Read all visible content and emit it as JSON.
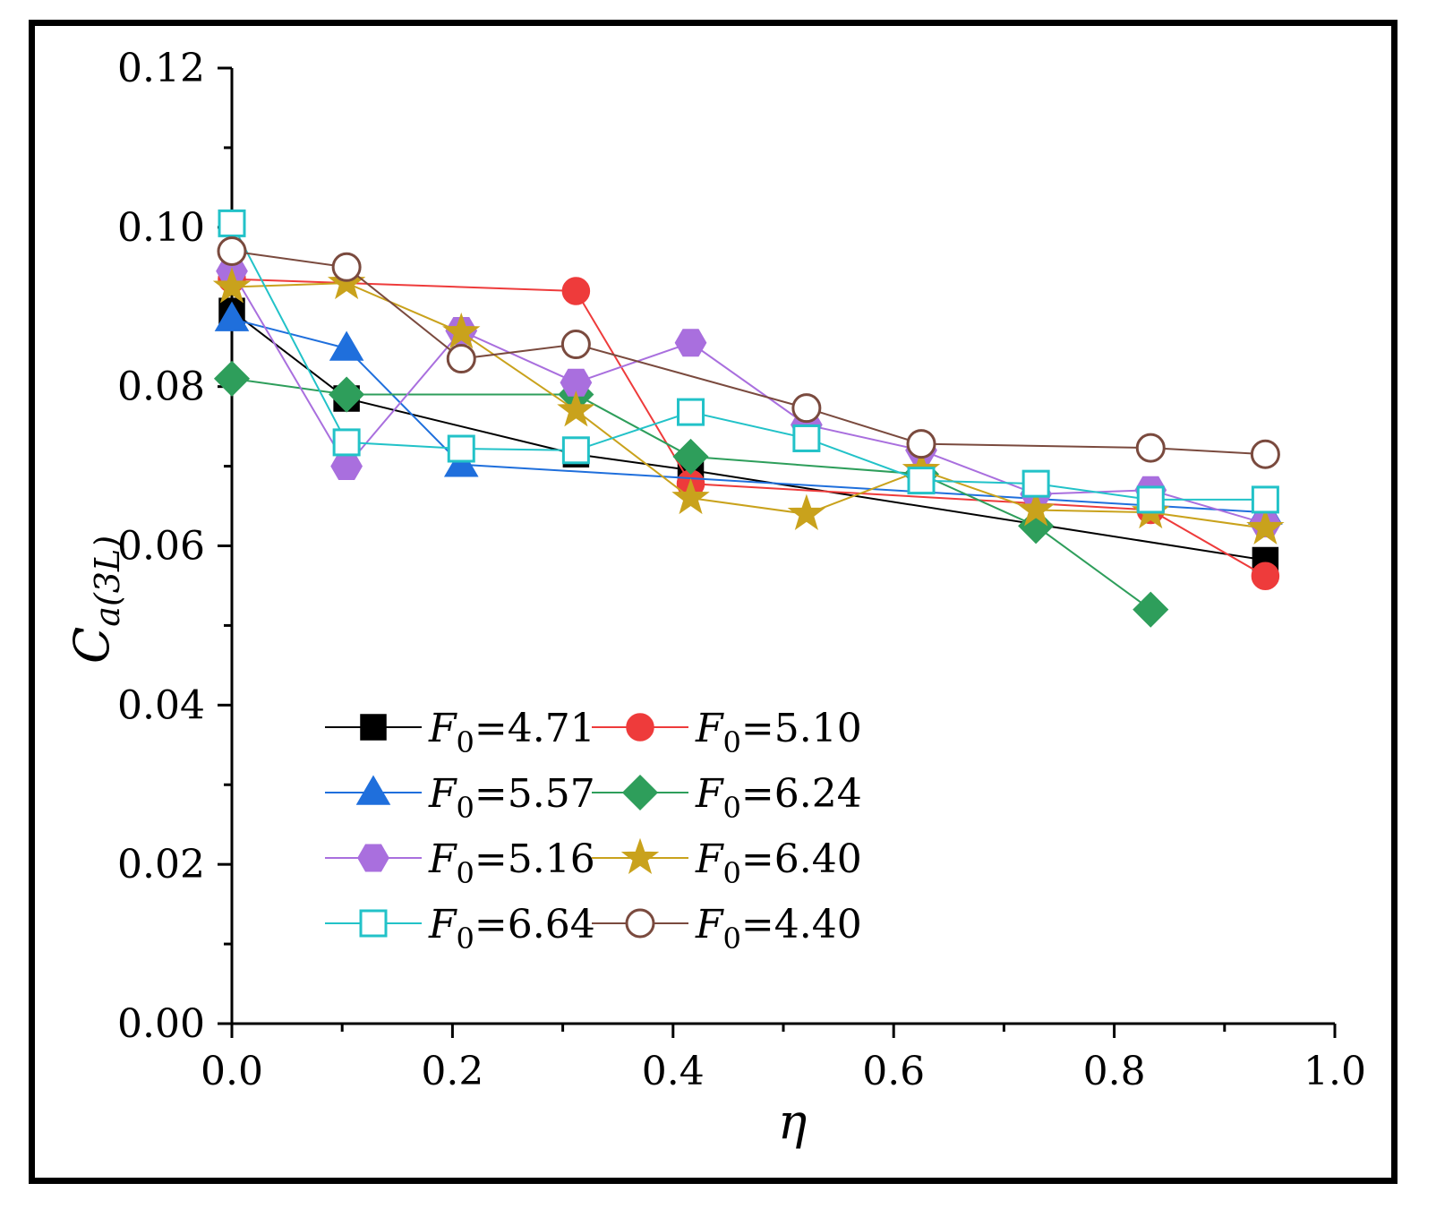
{
  "chart_data": {
    "type": "line",
    "title": "",
    "xlabel": "η",
    "ylabel_main": "C",
    "ylabel_sub": "a(3L)",
    "xlim": [
      0.0,
      1.0
    ],
    "ylim": [
      0.0,
      0.12
    ],
    "x_ticks": [
      "0.0",
      "0.2",
      "0.4",
      "0.6",
      "0.8",
      "1.0"
    ],
    "y_ticks": [
      "0.00",
      "0.02",
      "0.04",
      "0.06",
      "0.08",
      "0.10",
      "0.12"
    ],
    "x_tick_values": [
      0.0,
      0.2,
      0.4,
      0.6,
      0.8,
      1.0
    ],
    "y_tick_values": [
      0.0,
      0.02,
      0.04,
      0.06,
      0.08,
      0.1,
      0.12
    ],
    "grid": false,
    "legend_position": "lower-left",
    "series": [
      {
        "name_var": "F",
        "name_sub": "0",
        "name_val": "=4.71",
        "color": "#000000",
        "marker": "square",
        "filled": true,
        "x": [
          0.0,
          0.104,
          0.312,
          0.416,
          0.937
        ],
        "y": [
          0.0895,
          0.0785,
          0.0715,
          0.0695,
          0.0582
        ]
      },
      {
        "name_var": "F",
        "name_sub": "0",
        "name_val": "=5.10",
        "color": "#ee3b3b",
        "marker": "circle",
        "filled": true,
        "x": [
          0.0,
          0.312,
          0.416,
          0.833,
          0.937
        ],
        "y": [
          0.0935,
          0.092,
          0.0678,
          0.0645,
          0.0562
        ]
      },
      {
        "name_var": "F",
        "name_sub": "0",
        "name_val": "=5.57",
        "color": "#1f6fdc",
        "marker": "triangle",
        "filled": true,
        "x": [
          0.0,
          0.104,
          0.208,
          0.937
        ],
        "y": [
          0.0885,
          0.0848,
          0.0702,
          0.0642
        ]
      },
      {
        "name_var": "F",
        "name_sub": "0",
        "name_val": "=6.24",
        "color": "#2e9e5b",
        "marker": "diamond",
        "filled": true,
        "x": [
          0.0,
          0.104,
          0.312,
          0.416,
          0.625,
          0.729,
          0.833
        ],
        "y": [
          0.081,
          0.079,
          0.079,
          0.0712,
          0.069,
          0.0625,
          0.052
        ]
      },
      {
        "name_var": "F",
        "name_sub": "0",
        "name_val": "=5.16",
        "color": "#a96fde",
        "marker": "hexagon",
        "filled": true,
        "x": [
          0.0,
          0.104,
          0.208,
          0.312,
          0.416,
          0.521,
          0.625,
          0.729,
          0.833,
          0.937
        ],
        "y": [
          0.0945,
          0.07,
          0.087,
          0.0805,
          0.0855,
          0.0752,
          0.072,
          0.0665,
          0.067,
          0.0628
        ]
      },
      {
        "name_var": "F",
        "name_sub": "0",
        "name_val": "=6.40",
        "color": "#c9a21c",
        "marker": "star",
        "filled": true,
        "x": [
          0.0,
          0.104,
          0.208,
          0.312,
          0.416,
          0.521,
          0.625,
          0.729,
          0.833,
          0.937
        ],
        "y": [
          0.0925,
          0.093,
          0.0868,
          0.077,
          0.066,
          0.064,
          0.0695,
          0.0645,
          0.0642,
          0.0622
        ]
      },
      {
        "name_var": "F",
        "name_sub": "0",
        "name_val": "=6.64",
        "color": "#22c2c8",
        "marker": "square",
        "filled": false,
        "x": [
          0.0,
          0.104,
          0.208,
          0.312,
          0.416,
          0.521,
          0.625,
          0.729,
          0.833,
          0.937
        ],
        "y": [
          0.1005,
          0.073,
          0.0722,
          0.072,
          0.0768,
          0.0735,
          0.0682,
          0.0678,
          0.0658,
          0.0658
        ]
      },
      {
        "name_var": "F",
        "name_sub": "0",
        "name_val": "=4.40",
        "color": "#7a4a3e",
        "marker": "circle",
        "filled": false,
        "x": [
          0.0,
          0.104,
          0.208,
          0.312,
          0.521,
          0.625,
          0.833,
          0.937
        ],
        "y": [
          0.097,
          0.095,
          0.0835,
          0.0853,
          0.0773,
          0.0728,
          0.0723,
          0.0715
        ]
      }
    ]
  }
}
